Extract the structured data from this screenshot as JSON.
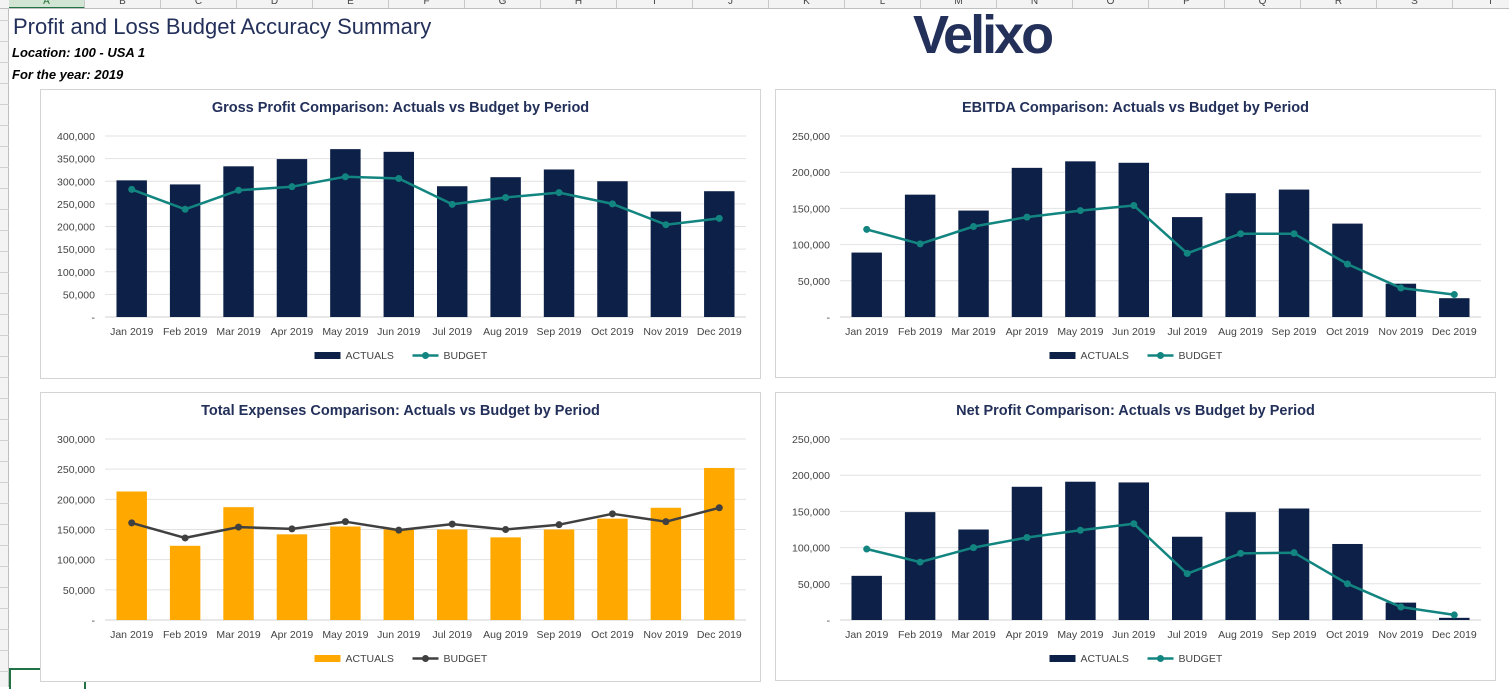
{
  "sheet": {
    "columns": [
      "A",
      "B",
      "C",
      "D",
      "E",
      "F",
      "G",
      "H",
      "I",
      "J",
      "K",
      "L",
      "M",
      "N",
      "O",
      "P",
      "Q",
      "R",
      "S",
      "T"
    ],
    "selected_column": "A"
  },
  "header": {
    "title": "Profit and Loss Budget Accuracy Summary",
    "location": "Location: 100 - USA 1",
    "year": "For the year: 2019",
    "logo": "Velixo"
  },
  "colors": {
    "navy": "#0d2148",
    "teal": "#138580",
    "orange": "#ffa800",
    "dark_gray": "#404040"
  },
  "chart_data": [
    {
      "type": "bar",
      "title": "Gross Profit Comparison: Actuals vs Budget by Period",
      "categories": [
        "Jan 2019",
        "Feb 2019",
        "Mar 2019",
        "Apr 2019",
        "May 2019",
        "Jun 2019",
        "Jul 2019",
        "Aug 2019",
        "Sep 2019",
        "Oct 2019",
        "Nov 2019",
        "Dec 2019"
      ],
      "yticks": [
        "-",
        "50,000",
        "100,000",
        "150,000",
        "200,000",
        "250,000",
        "300,000",
        "350,000",
        "400,000"
      ],
      "ylim": [
        0,
        400000
      ],
      "grid": true,
      "legend_position": "bottom",
      "bar_color": "#0d2148",
      "line_color": "#138580",
      "series": [
        {
          "name": "ACTUALS",
          "kind": "bar",
          "values": [
            302000,
            293000,
            333000,
            349000,
            371000,
            365000,
            289000,
            309000,
            326000,
            300000,
            233000,
            278000
          ]
        },
        {
          "name": "BUDGET",
          "kind": "line",
          "values": [
            282000,
            238000,
            280000,
            288000,
            310000,
            306000,
            249000,
            264000,
            275000,
            250000,
            204000,
            218000
          ]
        }
      ]
    },
    {
      "type": "bar",
      "title": "EBITDA Comparison: Actuals vs Budget by Period",
      "categories": [
        "Jan 2019",
        "Feb 2019",
        "Mar 2019",
        "Apr 2019",
        "May 2019",
        "Jun 2019",
        "Jul 2019",
        "Aug 2019",
        "Sep 2019",
        "Oct 2019",
        "Nov 2019",
        "Dec 2019"
      ],
      "yticks": [
        "-",
        "50,000",
        "100,000",
        "150,000",
        "200,000",
        "250,000"
      ],
      "ylim": [
        0,
        250000
      ],
      "grid": true,
      "legend_position": "bottom",
      "bar_color": "#0d2148",
      "line_color": "#138580",
      "series": [
        {
          "name": "ACTUALS",
          "kind": "bar",
          "values": [
            89000,
            169000,
            147000,
            206000,
            215000,
            213000,
            138000,
            171000,
            176000,
            129000,
            46000,
            26000
          ]
        },
        {
          "name": "BUDGET",
          "kind": "line",
          "values": [
            121000,
            101000,
            125000,
            138000,
            147000,
            154000,
            88000,
            115000,
            115000,
            73000,
            40000,
            31000
          ]
        }
      ]
    },
    {
      "type": "bar",
      "title": "Total Expenses Comparison: Actuals vs Budget by Period",
      "categories": [
        "Jan 2019",
        "Feb 2019",
        "Mar 2019",
        "Apr 2019",
        "May 2019",
        "Jun 2019",
        "Jul 2019",
        "Aug 2019",
        "Sep 2019",
        "Oct 2019",
        "Nov 2019",
        "Dec 2019"
      ],
      "yticks": [
        "-",
        "50,000",
        "100,000",
        "150,000",
        "200,000",
        "250,000",
        "300,000"
      ],
      "ylim": [
        0,
        300000
      ],
      "grid": true,
      "legend_position": "bottom",
      "bar_color": "#ffa800",
      "line_color": "#404040",
      "series": [
        {
          "name": "ACTUALS",
          "kind": "bar",
          "values": [
            213000,
            123000,
            187000,
            142000,
            155000,
            150000,
            150000,
            137000,
            150000,
            168000,
            186000,
            252000
          ]
        },
        {
          "name": "BUDGET",
          "kind": "line",
          "values": [
            161000,
            136000,
            154000,
            151000,
            163000,
            149000,
            159000,
            150000,
            158000,
            176000,
            163000,
            186000
          ]
        }
      ]
    },
    {
      "type": "bar",
      "title": "Net Profit Comparison: Actuals vs Budget by Period",
      "categories": [
        "Jan 2019",
        "Feb 2019",
        "Mar 2019",
        "Apr 2019",
        "May 2019",
        "Jun 2019",
        "Jul 2019",
        "Aug 2019",
        "Sep 2019",
        "Oct 2019",
        "Nov 2019",
        "Dec 2019"
      ],
      "yticks": [
        "-",
        "50,000",
        "100,000",
        "150,000",
        "200,000",
        "250,000"
      ],
      "ylim": [
        0,
        250000
      ],
      "grid": true,
      "legend_position": "bottom",
      "bar_color": "#0d2148",
      "line_color": "#138580",
      "series": [
        {
          "name": "ACTUALS",
          "kind": "bar",
          "values": [
            61000,
            149000,
            125000,
            184000,
            191000,
            190000,
            115000,
            149000,
            154000,
            105000,
            24000,
            3000
          ]
        },
        {
          "name": "BUDGET",
          "kind": "line",
          "values": [
            98000,
            80000,
            100000,
            114000,
            124000,
            133000,
            64000,
            92000,
            93000,
            50000,
            18000,
            7000
          ]
        }
      ]
    }
  ]
}
